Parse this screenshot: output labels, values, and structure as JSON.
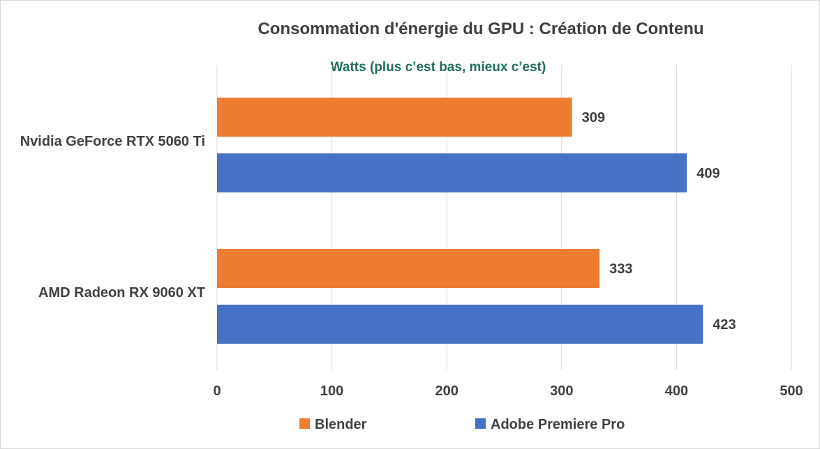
{
  "chart_data": {
    "type": "bar",
    "orientation": "horizontal",
    "title": "Consommation d'énergie du GPU : Création de Contenu",
    "subtitle": "Watts (plus c’est bas, mieux c’est)",
    "categories": [
      "Nvidia GeForce RTX 5060 Ti",
      "AMD Radeon RX 9060 XT"
    ],
    "series": [
      {
        "name": "Blender",
        "values": [
          309,
          333
        ],
        "color": "#ED7D31"
      },
      {
        "name": "Adobe Premiere Pro",
        "values": [
          409,
          423
        ],
        "color": "#4472C4"
      }
    ],
    "xlim": [
      0,
      500
    ],
    "xticks": [
      "0",
      "100",
      "200",
      "300",
      "400",
      "500"
    ],
    "grid": true,
    "legend_position": "bottom",
    "subtitle_color": "#1F6E5B"
  }
}
